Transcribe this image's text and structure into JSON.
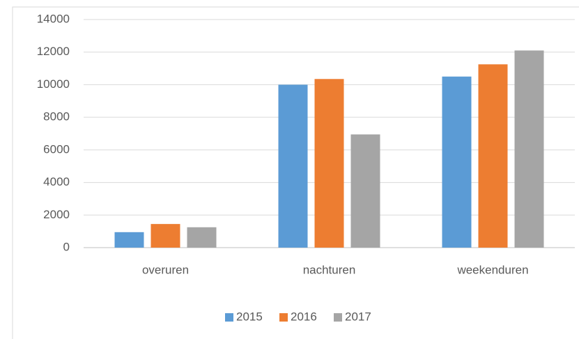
{
  "chart_data": {
    "type": "bar",
    "categories": [
      "overuren",
      "nachturen",
      "weekenduren"
    ],
    "series": [
      {
        "name": "2015",
        "color": "#5b9bd5",
        "values": [
          950,
          10000,
          10500
        ]
      },
      {
        "name": "2016",
        "color": "#ed7d31",
        "values": [
          1450,
          10350,
          11250
        ]
      },
      {
        "name": "2017",
        "color": "#a5a5a5",
        "values": [
          1250,
          6950,
          12100
        ]
      }
    ],
    "ylim": [
      0,
      14000
    ],
    "yticks": [
      0,
      2000,
      4000,
      6000,
      8000,
      10000,
      12000,
      14000
    ],
    "grid": true,
    "legend": "bottom"
  }
}
